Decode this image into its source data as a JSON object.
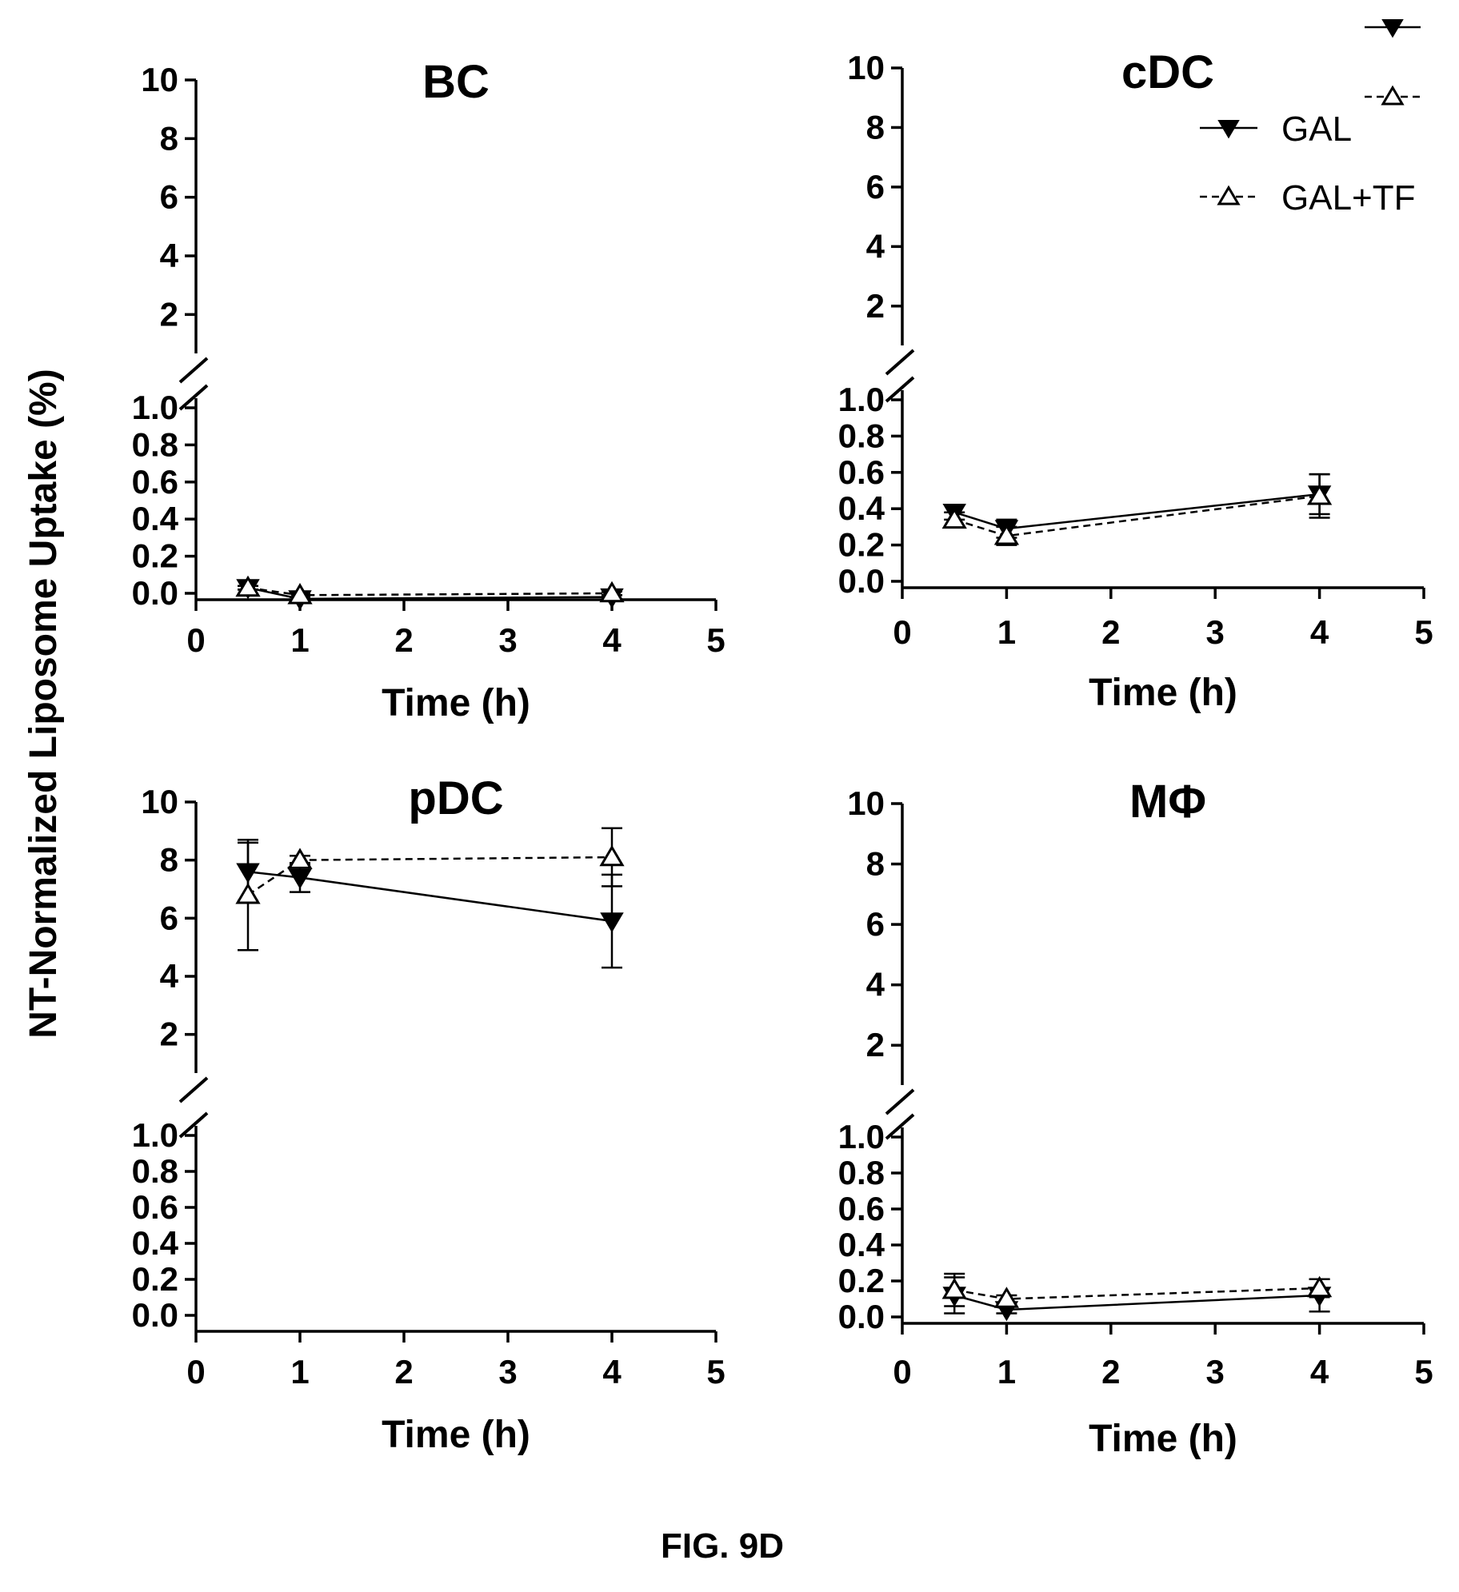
{
  "figure_label": "FIG. 9D",
  "y_axis_label": "NT-Normalized Liposome Uptake (%)",
  "legend": [
    {
      "name": "GAL",
      "marker": "filled-down-triangle",
      "line": "solid"
    },
    {
      "name": "GAL+TF",
      "marker": "open-up-triangle",
      "line": "dashed"
    }
  ],
  "chart_data": [
    {
      "type": "line",
      "title": "BC",
      "xlabel": "Time (h)",
      "xlim": [
        0,
        5
      ],
      "x_ticks": [
        "0",
        "1",
        "2",
        "3",
        "4",
        "5"
      ],
      "y_scale": "broken",
      "ylim_lower": [
        0.0,
        1.0
      ],
      "ylim_upper": [
        1,
        10
      ],
      "y_ticks_lower": [
        "0.0",
        "0.2",
        "0.4",
        "0.6",
        "0.8",
        "1.0"
      ],
      "y_ticks_upper": [
        "2",
        "4",
        "6",
        "8",
        "10"
      ],
      "x": [
        0.5,
        1,
        4
      ],
      "series": [
        {
          "name": "GAL",
          "values": [
            0.03,
            -0.03,
            -0.02
          ],
          "errors": [
            0.01,
            0.01,
            0.01
          ]
        },
        {
          "name": "GAL+TF",
          "values": [
            0.03,
            -0.01,
            0.0
          ],
          "errors": [
            0.01,
            0.01,
            0.01
          ]
        }
      ]
    },
    {
      "type": "line",
      "title": "cDC",
      "xlabel": "Time (h)",
      "xlim": [
        0,
        5
      ],
      "x_ticks": [
        "0",
        "1",
        "2",
        "3",
        "4",
        "5"
      ],
      "y_scale": "broken",
      "ylim_lower": [
        0.0,
        1.0
      ],
      "ylim_upper": [
        1,
        10
      ],
      "y_ticks_lower": [
        "0.0",
        "0.2",
        "0.4",
        "0.6",
        "0.8",
        "1.0"
      ],
      "y_ticks_upper": [
        "2",
        "4",
        "6",
        "8",
        "10"
      ],
      "x": [
        0.5,
        1,
        4
      ],
      "series": [
        {
          "name": "GAL",
          "values": [
            0.38,
            0.29,
            0.48
          ],
          "errors": [
            0.04,
            0.05,
            0.11
          ]
        },
        {
          "name": "GAL+TF",
          "values": [
            0.34,
            0.25,
            0.47
          ],
          "errors": [
            0.04,
            0.05,
            0.12
          ]
        }
      ]
    },
    {
      "type": "line",
      "title": "pDC",
      "xlabel": "Time (h)",
      "xlim": [
        0,
        5
      ],
      "x_ticks": [
        "0",
        "1",
        "2",
        "3",
        "4",
        "5"
      ],
      "y_scale": "broken",
      "ylim_lower": [
        0.0,
        1.0
      ],
      "ylim_upper": [
        1,
        10
      ],
      "y_ticks_lower": [
        "0.0",
        "0.2",
        "0.4",
        "0.6",
        "0.8",
        "1.0"
      ],
      "y_ticks_upper": [
        "2",
        "4",
        "6",
        "8",
        "10"
      ],
      "x": [
        0.5,
        1,
        4
      ],
      "series": [
        {
          "name": "GAL",
          "values": [
            7.6,
            7.4,
            5.9
          ],
          "errors": [
            1.0,
            0.5,
            1.6
          ]
        },
        {
          "name": "GAL+TF",
          "values": [
            6.8,
            8.0,
            8.1
          ],
          "errors": [
            1.9,
            0.15,
            1.0
          ]
        }
      ]
    },
    {
      "type": "line",
      "title": "MΦ",
      "xlabel": "Time (h)",
      "xlim": [
        0,
        5
      ],
      "x_ticks": [
        "0",
        "1",
        "2",
        "3",
        "4",
        "5"
      ],
      "y_scale": "broken",
      "ylim_lower": [
        0.0,
        1.0
      ],
      "ylim_upper": [
        1,
        10
      ],
      "y_ticks_lower": [
        "0.0",
        "0.2",
        "0.4",
        "0.6",
        "0.8",
        "1.0"
      ],
      "y_ticks_upper": [
        "2",
        "4",
        "6",
        "8",
        "10"
      ],
      "x": [
        0.5,
        1,
        4
      ],
      "series": [
        {
          "name": "GAL",
          "values": [
            0.12,
            0.04,
            0.12
          ],
          "errors": [
            0.1,
            0.02,
            0.09
          ]
        },
        {
          "name": "GAL+TF",
          "values": [
            0.15,
            0.1,
            0.16
          ],
          "errors": [
            0.09,
            0.02,
            0.05
          ]
        }
      ]
    }
  ]
}
